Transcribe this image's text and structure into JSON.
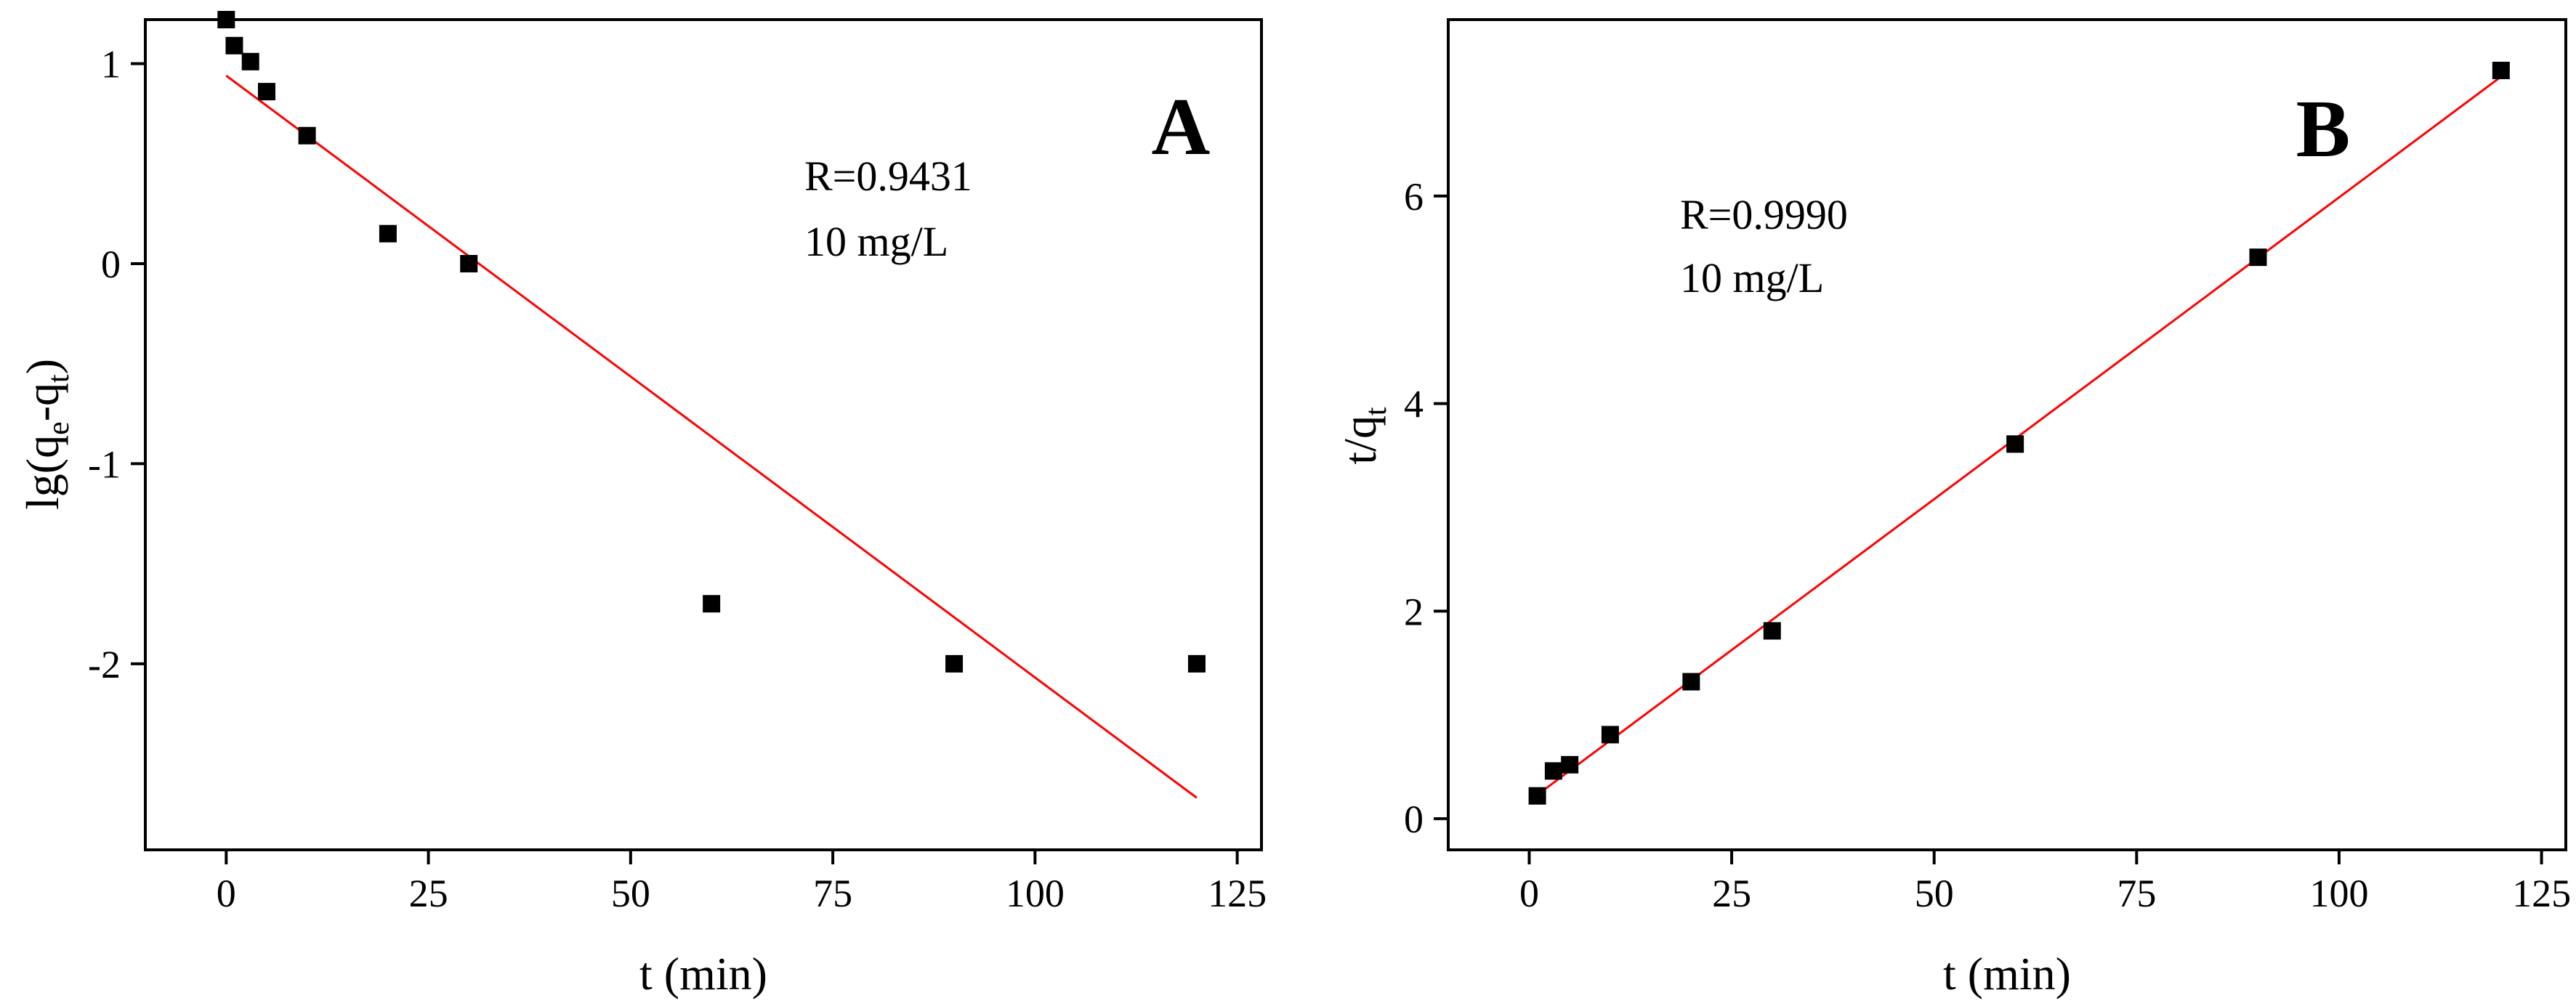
{
  "chart_data": [
    {
      "type": "scatter",
      "panel_label": "A",
      "xlabel": "t (min)",
      "ylabel": {
        "base": "lg(q",
        "sub1": "e",
        "mid": "-q",
        "sub2": "t",
        "end": ")"
      },
      "xlim": [
        -10,
        128
      ],
      "ylim": [
        -2.93,
        1.22
      ],
      "xticks": [
        0,
        25,
        50,
        75,
        100,
        125
      ],
      "xtick_labels": [
        "0",
        "25",
        "50",
        "75",
        "100",
        "125"
      ],
      "yticks": [
        1,
        0,
        -1,
        -2
      ],
      "ytick_labels": [
        "1",
        "0",
        "-1",
        "-2"
      ],
      "points": [
        {
          "x": 0,
          "y": 1.22
        },
        {
          "x": 1,
          "y": 1.09
        },
        {
          "x": 3,
          "y": 1.01
        },
        {
          "x": 5,
          "y": 0.86
        },
        {
          "x": 10,
          "y": 0.64
        },
        {
          "x": 20,
          "y": 0.15
        },
        {
          "x": 30,
          "y": 0.0
        },
        {
          "x": 60,
          "y": -1.7
        },
        {
          "x": 90,
          "y": -2.0
        },
        {
          "x": 120,
          "y": -2.0
        }
      ],
      "fit_line": {
        "x": [
          0,
          120
        ],
        "y": [
          0.94,
          -2.67
        ],
        "color": "#ff0000"
      },
      "annotation": {
        "r_text": "R=0.9431",
        "conc_text": "10 mg/L"
      },
      "marker_color": "#000000"
    },
    {
      "type": "scatter",
      "panel_label": "B",
      "xlabel": "t (min)",
      "ylabel": {
        "base": "t/q",
        "sub": "t"
      },
      "xlim": [
        -10,
        128
      ],
      "ylim": [
        -0.3,
        7.7
      ],
      "xticks": [
        0,
        25,
        50,
        75,
        100,
        125
      ],
      "xtick_labels": [
        "0",
        "25",
        "50",
        "75",
        "100",
        "125"
      ],
      "yticks": [
        0,
        2,
        4,
        6
      ],
      "ytick_labels": [
        "0",
        "2",
        "4",
        "6"
      ],
      "points": [
        {
          "x": 1,
          "y": 0.22
        },
        {
          "x": 3,
          "y": 0.46
        },
        {
          "x": 5,
          "y": 0.52
        },
        {
          "x": 10,
          "y": 0.81
        },
        {
          "x": 20,
          "y": 1.32
        },
        {
          "x": 30,
          "y": 1.81
        },
        {
          "x": 60,
          "y": 3.61
        },
        {
          "x": 90,
          "y": 5.41
        },
        {
          "x": 120,
          "y": 7.21
        }
      ],
      "fit_line": {
        "x": [
          1,
          120
        ],
        "y": [
          0.23,
          7.15
        ],
        "color": "#ff0000"
      },
      "annotation": {
        "r_text": "R=0.9990",
        "conc_text": "10 mg/L"
      },
      "marker_color": "#000000"
    }
  ]
}
